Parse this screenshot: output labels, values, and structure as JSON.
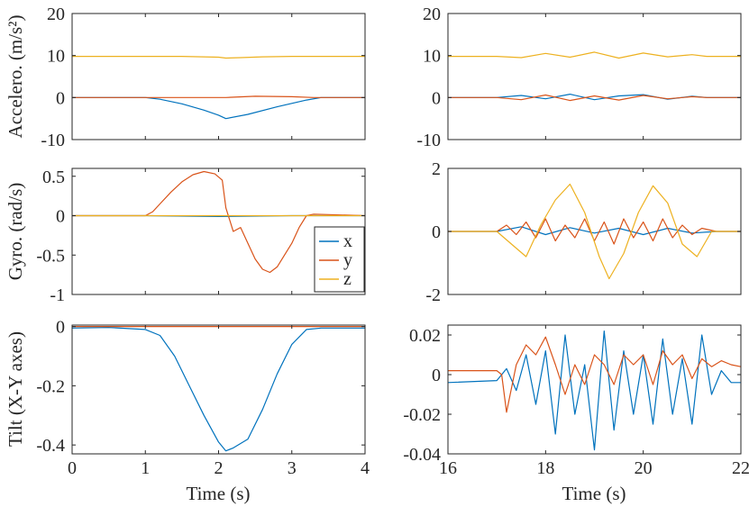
{
  "colors": {
    "x": "#0072BD",
    "y": "#D95319",
    "z": "#EDB120",
    "axis": "#262626"
  },
  "legend": {
    "entries": [
      "x",
      "y",
      "z"
    ],
    "placement": "inside-bottom-right of left gyro panel"
  },
  "chart_data": [
    {
      "id": "accel-left",
      "type": "line",
      "ylabel": "Accelero. (m/s²)",
      "xlabel": "",
      "xlim": [
        0,
        4
      ],
      "ylim": [
        -10,
        20
      ],
      "xticks": [
        0,
        1,
        2,
        3,
        4
      ],
      "xticklabels": [],
      "yticks": [
        -10,
        0,
        10,
        20
      ],
      "yticklabels": [
        "-10",
        "0",
        "10",
        "20"
      ],
      "series": [
        {
          "name": "x",
          "x": [
            0,
            1,
            1.2,
            1.5,
            1.8,
            2.0,
            2.1,
            2.4,
            2.8,
            3.2,
            3.4,
            4.0
          ],
          "y": [
            0,
            0,
            -0.4,
            -1.5,
            -3,
            -4.2,
            -5,
            -4,
            -2.2,
            -0.6,
            0,
            0
          ]
        },
        {
          "name": "y",
          "x": [
            0,
            1,
            1.5,
            2.0,
            2.1,
            2.5,
            3.0,
            3.3,
            4.0
          ],
          "y": [
            0,
            0,
            0,
            0,
            0,
            0.3,
            0.2,
            0,
            0
          ]
        },
        {
          "name": "z",
          "x": [
            0,
            1.0,
            1.5,
            2.0,
            2.1,
            2.3,
            2.6,
            3.0,
            3.2,
            4.0
          ],
          "y": [
            9.8,
            9.8,
            9.8,
            9.6,
            9.4,
            9.5,
            9.7,
            9.8,
            9.8,
            9.8
          ]
        }
      ]
    },
    {
      "id": "accel-right",
      "type": "line",
      "ylabel": "",
      "xlabel": "",
      "xlim": [
        16,
        22
      ],
      "ylim": [
        -10,
        20
      ],
      "xticks": [
        16,
        18,
        20,
        22
      ],
      "xticklabels": [],
      "yticks": [
        -10,
        0,
        10,
        20
      ],
      "yticklabels": [
        "-10",
        "0",
        "10",
        "20"
      ],
      "series": [
        {
          "name": "x",
          "x": [
            16,
            17,
            17.5,
            18,
            18.5,
            19,
            19.5,
            20,
            20.5,
            21,
            21.3,
            21.5,
            22
          ],
          "y": [
            0,
            0,
            0.5,
            -0.3,
            0.8,
            -0.5,
            0.4,
            0.7,
            -0.4,
            0.3,
            0,
            0,
            0
          ]
        },
        {
          "name": "y",
          "x": [
            16,
            17,
            17.5,
            18,
            18.5,
            19,
            19.5,
            20,
            20.5,
            21,
            21.3,
            21.5,
            22
          ],
          "y": [
            0,
            0,
            -0.5,
            0.6,
            -0.7,
            0.4,
            -0.6,
            0.5,
            -0.3,
            0.2,
            0,
            0,
            0
          ]
        },
        {
          "name": "z",
          "x": [
            16,
            17,
            17.5,
            18,
            18.5,
            19,
            19.5,
            20,
            20.5,
            21,
            21.3,
            21.5,
            22
          ],
          "y": [
            9.8,
            9.8,
            9.5,
            10.5,
            9.6,
            10.8,
            9.4,
            10.6,
            9.7,
            10.2,
            9.8,
            9.8,
            9.8
          ]
        }
      ]
    },
    {
      "id": "gyro-left",
      "type": "line",
      "ylabel": "Gyro. (rad/s)",
      "xlabel": "",
      "xlim": [
        0,
        4
      ],
      "ylim": [
        -1,
        0.6
      ],
      "xticks": [
        0,
        1,
        2,
        3,
        4
      ],
      "xticklabels": [],
      "yticks": [
        -1,
        -0.5,
        0,
        0.5
      ],
      "yticklabels": [
        "-1",
        "-0.5",
        "0",
        "0.5"
      ],
      "series": [
        {
          "name": "x",
          "x": [
            0,
            1,
            2,
            3,
            4
          ],
          "y": [
            0,
            0,
            -0.01,
            0,
            0
          ]
        },
        {
          "name": "y",
          "x": [
            0,
            1.0,
            1.1,
            1.2,
            1.35,
            1.5,
            1.65,
            1.8,
            1.95,
            2.05,
            2.1,
            2.2,
            2.3,
            2.4,
            2.5,
            2.6,
            2.7,
            2.8,
            2.9,
            3.0,
            3.1,
            3.2,
            3.3,
            4.0
          ],
          "y": [
            0,
            0,
            0.05,
            0.15,
            0.3,
            0.43,
            0.52,
            0.56,
            0.53,
            0.45,
            0.1,
            -0.2,
            -0.15,
            -0.35,
            -0.55,
            -0.68,
            -0.72,
            -0.65,
            -0.5,
            -0.35,
            -0.15,
            0,
            0.02,
            0
          ]
        },
        {
          "name": "z",
          "x": [
            0,
            1,
            2,
            3,
            4
          ],
          "y": [
            0,
            0,
            0,
            0,
            0
          ]
        }
      ]
    },
    {
      "id": "gyro-right",
      "type": "line",
      "ylabel": "",
      "xlabel": "",
      "xlim": [
        16,
        22
      ],
      "ylim": [
        -2,
        2
      ],
      "xticks": [
        16,
        18,
        20,
        22
      ],
      "xticklabels": [],
      "yticks": [
        -2,
        0,
        2
      ],
      "yticklabels": [
        "-2",
        "0",
        "2"
      ],
      "series": [
        {
          "name": "x",
          "x": [
            16,
            17,
            17.5,
            18,
            18.5,
            19,
            19.5,
            20,
            20.5,
            21,
            21.5,
            22
          ],
          "y": [
            0,
            0,
            0.15,
            -0.1,
            0.12,
            -0.05,
            0.1,
            -0.1,
            0.1,
            -0.05,
            0,
            0
          ]
        },
        {
          "name": "y",
          "x": [
            16,
            17,
            17.2,
            17.4,
            17.6,
            17.8,
            18.0,
            18.2,
            18.4,
            18.6,
            18.8,
            19.0,
            19.2,
            19.4,
            19.6,
            19.8,
            20.0,
            20.2,
            20.4,
            20.6,
            20.8,
            21.0,
            21.2,
            21.5,
            22
          ],
          "y": [
            0,
            0,
            0.2,
            -0.1,
            0.3,
            -0.2,
            0.4,
            -0.3,
            0.2,
            -0.2,
            0.4,
            -0.3,
            0.3,
            -0.4,
            0.4,
            -0.2,
            0.3,
            -0.3,
            0.4,
            -0.2,
            0.2,
            -0.1,
            0.1,
            0,
            0
          ]
        },
        {
          "name": "z",
          "x": [
            16,
            17,
            17.3,
            17.6,
            17.9,
            18.2,
            18.5,
            18.8,
            19.1,
            19.3,
            19.6,
            19.9,
            20.2,
            20.5,
            20.8,
            21.1,
            21.4,
            22
          ],
          "y": [
            0,
            0,
            -0.4,
            -0.8,
            0.2,
            1.0,
            1.5,
            0.6,
            -0.8,
            -1.5,
            -0.7,
            0.6,
            1.45,
            0.9,
            -0.4,
            -0.8,
            0,
            0
          ]
        }
      ]
    },
    {
      "id": "tilt-left",
      "type": "line",
      "ylabel": "Tilt (X-Y axes)",
      "xlabel": "Time (s)",
      "xlim": [
        0,
        4
      ],
      "ylim": [
        -0.43,
        0.005
      ],
      "xticks": [
        0,
        1,
        2,
        3,
        4
      ],
      "xticklabels": [
        "0",
        "1",
        "2",
        "3",
        "4"
      ],
      "yticks": [
        -0.4,
        -0.2,
        0
      ],
      "yticklabels": [
        "-0.4",
        "-0.2",
        "0"
      ],
      "series": [
        {
          "name": "x",
          "x": [
            0,
            0.5,
            1.0,
            1.2,
            1.4,
            1.6,
            1.8,
            2.0,
            2.1,
            2.2,
            2.4,
            2.6,
            2.8,
            3.0,
            3.2,
            3.4,
            4.0
          ],
          "y": [
            -0.005,
            -0.003,
            -0.01,
            -0.03,
            -0.1,
            -0.2,
            -0.3,
            -0.39,
            -0.42,
            -0.41,
            -0.38,
            -0.28,
            -0.16,
            -0.06,
            -0.01,
            -0.005,
            -0.005
          ]
        },
        {
          "name": "y",
          "x": [
            0,
            1,
            2,
            3,
            4
          ],
          "y": [
            0,
            0,
            0,
            0,
            0
          ]
        }
      ]
    },
    {
      "id": "tilt-right",
      "type": "line",
      "ylabel": "",
      "xlabel": "Time (s)",
      "xlim": [
        16,
        22
      ],
      "ylim": [
        -0.04,
        0.025
      ],
      "xticks": [
        16,
        18,
        20,
        22
      ],
      "xticklabels": [
        "16",
        "18",
        "20",
        "22"
      ],
      "yticks": [
        -0.04,
        -0.02,
        0,
        0.02
      ],
      "yticklabels": [
        "-0.04",
        "-0.02",
        "0",
        "0.02"
      ],
      "series": [
        {
          "name": "x",
          "x": [
            16,
            17,
            17.2,
            17.4,
            17.6,
            17.8,
            18.0,
            18.2,
            18.4,
            18.6,
            18.8,
            19.0,
            19.2,
            19.4,
            19.6,
            19.8,
            20.0,
            20.2,
            20.4,
            20.6,
            20.8,
            21.0,
            21.2,
            21.4,
            21.6,
            21.8,
            22
          ],
          "y": [
            -0.004,
            -0.003,
            0.003,
            -0.008,
            0.01,
            -0.015,
            0.012,
            -0.03,
            0.02,
            -0.02,
            0.005,
            -0.038,
            0.022,
            -0.028,
            0.012,
            -0.02,
            0.01,
            -0.025,
            0.018,
            -0.02,
            0.008,
            -0.025,
            0.02,
            -0.01,
            0.002,
            -0.004,
            -0.004
          ]
        },
        {
          "name": "y",
          "x": [
            16,
            17,
            17.1,
            17.2,
            17.4,
            17.6,
            17.8,
            18.0,
            18.2,
            18.4,
            18.6,
            18.8,
            19.0,
            19.2,
            19.4,
            19.6,
            19.8,
            20.0,
            20.2,
            20.4,
            20.6,
            20.8,
            21.0,
            21.2,
            21.4,
            21.6,
            21.8,
            22
          ],
          "y": [
            0.002,
            0.002,
            0,
            -0.019,
            0.005,
            0.015,
            0.01,
            0.019,
            0.005,
            -0.01,
            0.005,
            -0.005,
            0.01,
            0.005,
            -0.005,
            0.01,
            0.005,
            0.01,
            -0.005,
            0.012,
            0.005,
            0.01,
            -0.002,
            0.008,
            0.004,
            0.007,
            0.005,
            0.004
          ]
        }
      ]
    }
  ]
}
